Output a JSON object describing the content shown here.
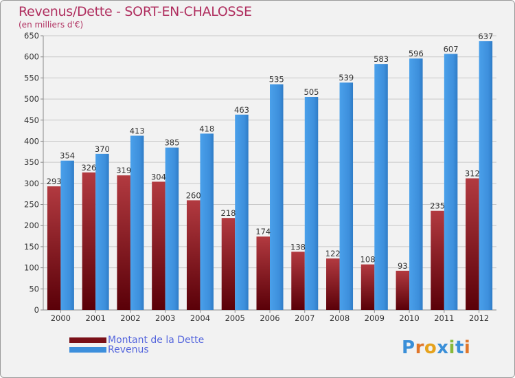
{
  "title": "Revenus/Dette - SORT-EN-CHALOSSE",
  "subtitle": "(en milliers d'€)",
  "logo": {
    "text": "Proxiti",
    "letter_colors": [
      "#3a8fd8",
      "#e0762a",
      "#e6a21c",
      "#3a8fd8",
      "#88b83a",
      "#3a8fd8",
      "#e0762a"
    ]
  },
  "colors": {
    "dette": "#7a1018",
    "revenus": "#3d8fdc",
    "title": "#b03060",
    "legend_text": "#5566dd"
  },
  "chart_data": {
    "type": "bar",
    "title": "Revenus/Dette - SORT-EN-CHALOSSE",
    "ylabel": "(en milliers d'€)",
    "xlabel": "",
    "categories": [
      "2000",
      "2001",
      "2002",
      "2003",
      "2004",
      "2005",
      "2006",
      "2007",
      "2008",
      "2009",
      "2010",
      "2011",
      "2012"
    ],
    "series": [
      {
        "name": "Montant de la Dette",
        "values": [
          293,
          326,
          319,
          304,
          260,
          218,
          174,
          138,
          122,
          108,
          93,
          235,
          312
        ]
      },
      {
        "name": "Revenus",
        "values": [
          354,
          370,
          413,
          385,
          418,
          463,
          535,
          505,
          539,
          583,
          596,
          607,
          637
        ]
      }
    ],
    "ylim": [
      0,
      650
    ],
    "yticks": [
      0,
      50,
      100,
      150,
      200,
      250,
      300,
      350,
      400,
      450,
      500,
      550,
      600,
      650
    ],
    "grid": true,
    "legend_position": "bottom-left"
  }
}
